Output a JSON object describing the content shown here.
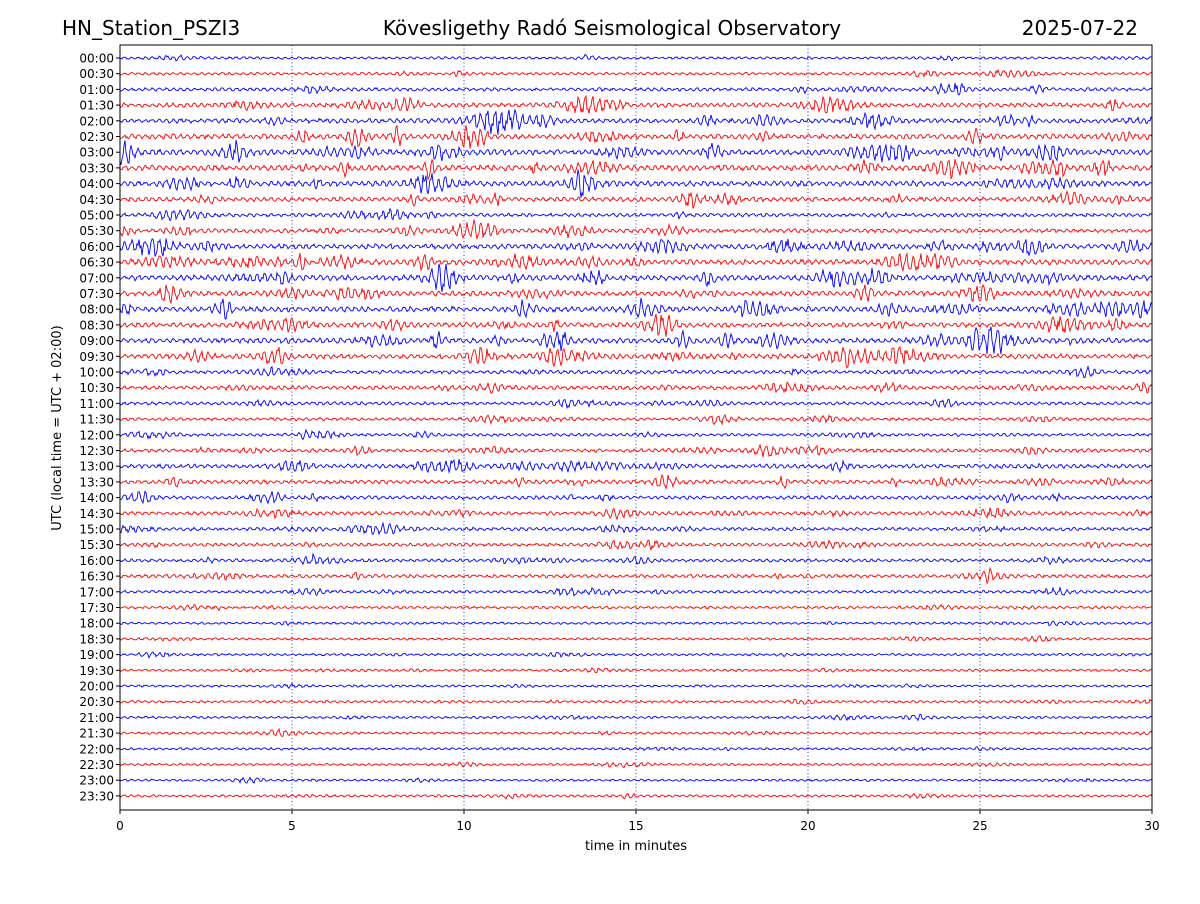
{
  "header": {
    "station": "HN_Station_PSZI3",
    "observatory": "Kövesligethy Radó Seismological Observatory",
    "date": "2025-07-22"
  },
  "chart_data": {
    "type": "line",
    "subtype": "helicorder",
    "xlabel": "time in minutes",
    "ylabel": "UTC (local time = UTC + 02:00)",
    "xlim": [
      0,
      30
    ],
    "x_ticks": [
      0,
      5,
      10,
      15,
      20,
      25,
      30
    ],
    "vertical_gridlines_at": [
      5,
      10,
      15,
      20,
      25
    ],
    "grid_style": "dotted blue vertical lines",
    "trace_colors": [
      "#0000ff",
      "#ff0000"
    ],
    "row_labels": [
      "00:00",
      "00:30",
      "01:00",
      "01:30",
      "02:00",
      "02:30",
      "03:00",
      "03:30",
      "04:00",
      "04:30",
      "05:00",
      "05:30",
      "06:00",
      "06:30",
      "07:00",
      "07:30",
      "08:00",
      "08:30",
      "09:00",
      "09:30",
      "10:00",
      "10:30",
      "11:00",
      "11:30",
      "12:00",
      "12:30",
      "13:00",
      "13:30",
      "14:00",
      "14:30",
      "15:00",
      "15:30",
      "16:00",
      "16:30",
      "17:00",
      "17:30",
      "18:00",
      "18:30",
      "19:00",
      "19:30",
      "20:00",
      "20:30",
      "21:00",
      "21:30",
      "22:00",
      "22:30",
      "23:00",
      "23:30"
    ],
    "row_activity": [
      0.25,
      0.3,
      0.45,
      0.7,
      0.75,
      0.85,
      1.0,
      0.95,
      0.9,
      0.75,
      0.5,
      0.6,
      0.85,
      0.9,
      1.0,
      0.85,
      0.9,
      0.8,
      0.9,
      0.8,
      0.5,
      0.55,
      0.4,
      0.35,
      0.35,
      0.5,
      0.65,
      0.6,
      0.5,
      0.5,
      0.45,
      0.45,
      0.4,
      0.45,
      0.3,
      0.25,
      0.2,
      0.2,
      0.2,
      0.22,
      0.18,
      0.22,
      0.22,
      0.22,
      0.2,
      0.18,
      0.18,
      0.22
    ]
  }
}
